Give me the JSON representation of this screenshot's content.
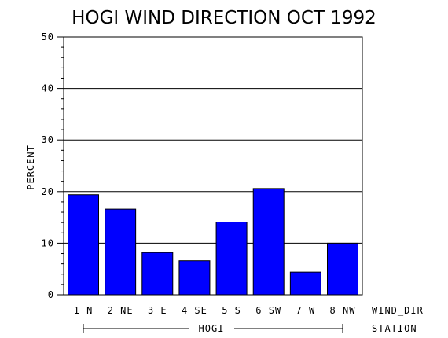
{
  "chart_data": {
    "type": "bar",
    "title": "HOGI WIND DIRECTION OCT 1992",
    "ylabel": "PERCENT",
    "xlabel": "WIND_DIR",
    "group_axis_label": "STATION",
    "group_label": "HOGI",
    "categories": [
      "1 N",
      "2 NE",
      "3 E",
      "4 SE",
      "5 S",
      "6 SW",
      "7 W",
      "8 NW"
    ],
    "values": [
      19.4,
      16.6,
      8.2,
      6.6,
      14.1,
      20.6,
      4.4,
      10.0
    ],
    "ylim": [
      0,
      50
    ],
    "yticks": [
      0,
      10,
      20,
      30,
      40,
      50
    ],
    "grid": true,
    "bar_color": "#0000ff"
  }
}
